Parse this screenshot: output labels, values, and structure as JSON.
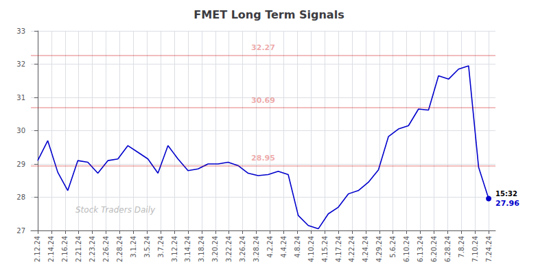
{
  "chart_data": {
    "type": "line",
    "title": "FMET Long Term Signals",
    "x": [
      0,
      0.7333333333333333,
      1.4666666666666666,
      2.2,
      2.933333333333333,
      3.6666666666666665,
      4.4,
      5.133333333333333,
      5.866666666666666,
      6.6,
      7.333333333333333,
      8.066666666666666,
      8.8,
      9.533333333333333,
      10.266666666666666,
      11,
      11.733333333333333,
      12.466666666666667,
      13.2,
      13.933333333333334,
      14.666666666666666,
      15.4,
      16.133333333333333,
      16.866666666666667,
      17.6,
      18.333333333333332,
      19.066666666666666,
      19.8,
      20.533333333333335,
      21.266666666666666,
      22,
      22.733333333333334,
      23.466666666666665,
      24.2,
      24.933333333333334,
      25.666666666666668,
      26.4,
      27.133333333333333,
      27.866666666666667,
      28.6,
      29.333333333333332,
      30.066666666666666,
      30.8,
      31.533333333333335,
      32.266666666666666,
      33
    ],
    "values": [
      29.1,
      29.7,
      28.75,
      28.2,
      29.1,
      29.05,
      28.72,
      29.1,
      29.15,
      29.55,
      29.35,
      29.15,
      28.72,
      29.55,
      29.15,
      28.8,
      28.85,
      29.0,
      29.0,
      29.05,
      28.95,
      28.72,
      28.65,
      28.68,
      28.78,
      28.68,
      27.45,
      27.15,
      27.05,
      27.5,
      27.7,
      28.1,
      28.2,
      28.45,
      28.82,
      29.82,
      30.05,
      30.15,
      30.65,
      30.62,
      31.65,
      31.55,
      31.85,
      31.95,
      28.9,
      27.96
    ],
    "color": "#0000cc",
    "xlim": [
      -0.5,
      33.5
    ],
    "xticks": [
      {
        "value": 0,
        "label": "2.12.24"
      },
      {
        "value": 1,
        "label": "2.14.24"
      },
      {
        "value": 2,
        "label": "2.16.24"
      },
      {
        "value": 3,
        "label": "2.21.24"
      },
      {
        "value": 4,
        "label": "2.23.24"
      },
      {
        "value": 5,
        "label": "2.26.24"
      },
      {
        "value": 6,
        "label": "2.28.24"
      },
      {
        "value": 7,
        "label": "3.1.24"
      },
      {
        "value": 8,
        "label": "3.5.24"
      },
      {
        "value": 9,
        "label": "3.7.24"
      },
      {
        "value": 10,
        "label": "3.12.24"
      },
      {
        "value": 11,
        "label": "3.14.24"
      },
      {
        "value": 12,
        "label": "3.18.24"
      },
      {
        "value": 13,
        "label": "3.20.24"
      },
      {
        "value": 14,
        "label": "3.22.24"
      },
      {
        "value": 15,
        "label": "3.26.24"
      },
      {
        "value": 16,
        "label": "3.28.24"
      },
      {
        "value": 17,
        "label": "4.2.24"
      },
      {
        "value": 18,
        "label": "4.4.24"
      },
      {
        "value": 19,
        "label": "4.8.24"
      },
      {
        "value": 20,
        "label": "4.10.24"
      },
      {
        "value": 21,
        "label": "4.15.24"
      },
      {
        "value": 22,
        "label": "4.17.24"
      },
      {
        "value": 23,
        "label": "4.22.24"
      },
      {
        "value": 24,
        "label": "4.24.24"
      },
      {
        "value": 25,
        "label": "4.29.24"
      },
      {
        "value": 26,
        "label": "5.6.24"
      },
      {
        "value": 27,
        "label": "6.10.24"
      },
      {
        "value": 28,
        "label": "6.13.24"
      },
      {
        "value": 29,
        "label": "6.20.24"
      },
      {
        "value": 30,
        "label": "6.28.24"
      },
      {
        "value": 31,
        "label": "7.8.24"
      },
      {
        "value": 32,
        "label": "7.10.24"
      },
      {
        "value": 33,
        "label": "7.24.24"
      }
    ],
    "ylim": [
      27.0,
      33.0
    ],
    "yticks": [
      27,
      28,
      29,
      30,
      31,
      32,
      33
    ],
    "grid": true,
    "hlines": [
      {
        "y": 32.27,
        "label": "32.27",
        "color": "#cc0000"
      },
      {
        "y": 30.69,
        "label": "30.69",
        "color": "#cc0000"
      },
      {
        "y": 28.95,
        "label": "28.95",
        "color": "#cc0000"
      }
    ],
    "last_point_labels": [
      "15:32",
      "27.96"
    ],
    "watermark": "Stock Traders Daily"
  }
}
